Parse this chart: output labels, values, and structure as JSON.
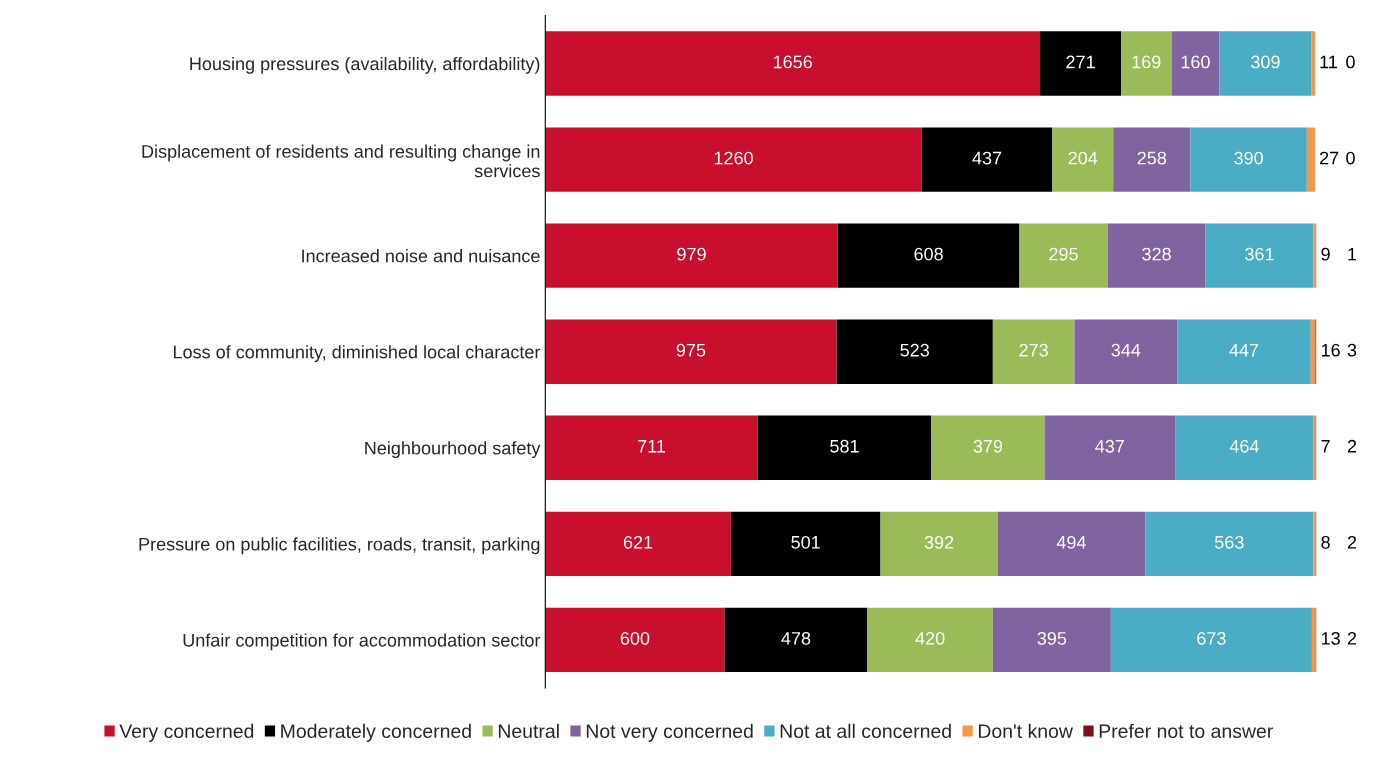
{
  "chart_data": {
    "type": "bar",
    "orientation": "horizontal",
    "stacked": true,
    "data_labels": true,
    "legend": "bottom",
    "grid": false,
    "tick_labels": "y",
    "categories": [
      "Housing pressures (availability, affordability)",
      "Displacement of residents and resulting change in\nservices",
      "Increased noise and nuisance",
      "Loss of community, diminished local character",
      "Neighbourhood safety",
      "Pressure on public facilities, roads, transit, parking",
      "Unfair competition for accommodation sector"
    ],
    "series": [
      {
        "name": "Very concerned",
        "color": "#c8102e",
        "values": [
          1656,
          1260,
          979,
          975,
          711,
          621,
          600
        ]
      },
      {
        "name": "Moderately concerned",
        "color": "#000000",
        "values": [
          271,
          437,
          608,
          523,
          581,
          501,
          478
        ]
      },
      {
        "name": "Neutral",
        "color": "#9bbb59",
        "values": [
          169,
          204,
          295,
          273,
          379,
          392,
          420
        ]
      },
      {
        "name": "Not very concerned",
        "color": "#8064a2",
        "values": [
          160,
          258,
          328,
          344,
          437,
          494,
          395
        ]
      },
      {
        "name": "Not at all concerned",
        "color": "#4bacc6",
        "values": [
          309,
          390,
          361,
          447,
          464,
          563,
          673
        ]
      },
      {
        "name": "Don't know",
        "color": "#f79646",
        "values": [
          11,
          27,
          9,
          16,
          7,
          8,
          13
        ]
      },
      {
        "name": "Prefer not to answer",
        "color": "#7b1020",
        "values": [
          0,
          0,
          1,
          3,
          2,
          2,
          2
        ]
      }
    ]
  }
}
